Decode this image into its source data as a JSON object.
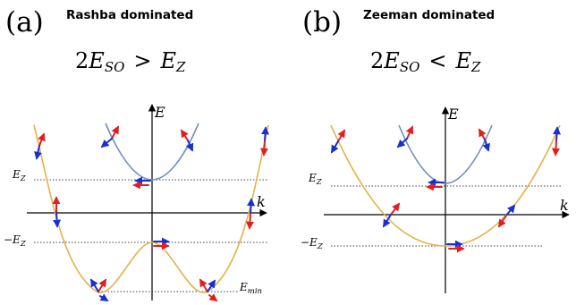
{
  "panels": [
    {
      "letter": "(a)",
      "title": "Rashba dominated",
      "condition": {
        "lhs_coeff": "2",
        "lhs_sym": "E",
        "lhs_sub": "SO",
        "op": ">",
        "rhs_sym": "E",
        "rhs_sub": "Z"
      },
      "axis_x_label": "k",
      "axis_y_label": "E",
      "level_labels": {
        "ez": {
          "sym": "E",
          "sub": "Z"
        },
        "mez": {
          "sym": "−E",
          "sub": "Z"
        },
        "emin": {
          "sym": "E",
          "sub": "min"
        }
      }
    },
    {
      "letter": "(b)",
      "title": "Zeeman dominated",
      "condition": {
        "lhs_coeff": "2",
        "lhs_sym": "E",
        "lhs_sub": "SO",
        "op": "<",
        "rhs_sym": "E",
        "rhs_sub": "Z"
      },
      "axis_x_label": "k",
      "axis_y_label": "E",
      "level_labels": {
        "ez": {
          "sym": "E",
          "sub": "Z"
        },
        "mez": {
          "sym": "−E",
          "sub": "Z"
        }
      }
    }
  ],
  "colors": {
    "upper_band": "#6f8fc0",
    "lower_band": "#e3b24c",
    "arrow_red": "#e02020",
    "arrow_blue": "#1a2fd0",
    "axis": "#000000",
    "dotted": "#444444"
  }
}
